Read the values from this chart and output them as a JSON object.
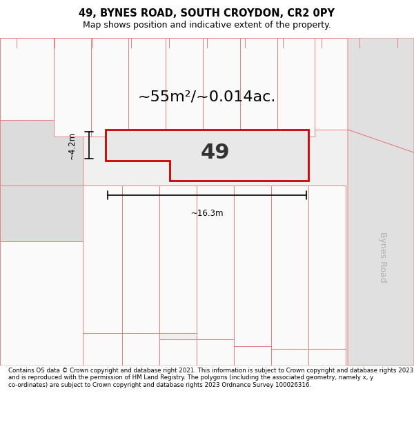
{
  "title": "49, BYNES ROAD, SOUTH CROYDON, CR2 0PY",
  "subtitle": "Map shows position and indicative extent of the property.",
  "footer": "Contains OS data © Crown copyright and database right 2021. This information is subject to Crown copyright and database rights 2023 and is reproduced with the permission of HM Land Registry. The polygons (including the associated geometry, namely x, y co-ordinates) are subject to Crown copyright and database rights 2023 Ordnance Survey 100026316.",
  "area_label": "~55m²/~0.014ac.",
  "dim_width": "~16.3m",
  "dim_height": "~4.2m",
  "property_number": "49",
  "road_label": "Bynes Road",
  "map_bg": "#f0f0f0",
  "property_fill": "#e8e8e8",
  "property_edge": "#cc0000",
  "neighbor_edge": "#e88080",
  "neighbor_fill": "#fafafa"
}
